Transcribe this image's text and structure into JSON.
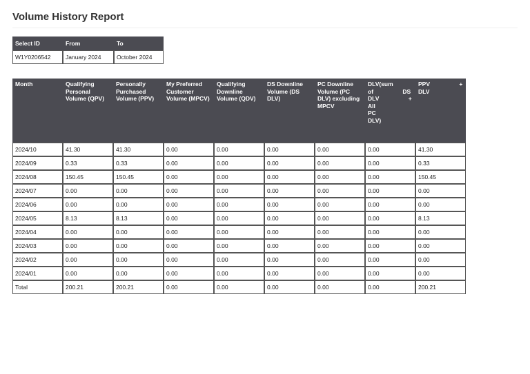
{
  "report": {
    "title": "Volume History Report"
  },
  "selection": {
    "headers": [
      "Select ID",
      "From",
      "To"
    ],
    "row": [
      "W1Y0206542",
      "January 2024",
      "October 2024"
    ]
  },
  "volume": {
    "headers": [
      "Month",
      "Qualifying Personal Volume (QPV)",
      "Personally Purchased Volume (PPV)",
      "My Preferred Customer Volume (MPCV)",
      "Qualifying Downline Volume (QDV)",
      "DS Downline Volume (DS DLV)",
      "PC Downline Volume (PC DLV) excluding MPCV",
      "DLV(sum of DS DLV + All PC DLV)",
      "PPV + DLV"
    ],
    "rows": [
      [
        "2024/10",
        "41.30",
        "41.30",
        "0.00",
        "0.00",
        "0.00",
        "0.00",
        "0.00",
        "41.30"
      ],
      [
        "2024/09",
        "0.33",
        "0.33",
        "0.00",
        "0.00",
        "0.00",
        "0.00",
        "0.00",
        "0.33"
      ],
      [
        "2024/08",
        "150.45",
        "150.45",
        "0.00",
        "0.00",
        "0.00",
        "0.00",
        "0.00",
        "150.45"
      ],
      [
        "2024/07",
        "0.00",
        "0.00",
        "0.00",
        "0.00",
        "0.00",
        "0.00",
        "0.00",
        "0.00"
      ],
      [
        "2024/06",
        "0.00",
        "0.00",
        "0.00",
        "0.00",
        "0.00",
        "0.00",
        "0.00",
        "0.00"
      ],
      [
        "2024/05",
        "8.13",
        "8.13",
        "0.00",
        "0.00",
        "0.00",
        "0.00",
        "0.00",
        "8.13"
      ],
      [
        "2024/04",
        "0.00",
        "0.00",
        "0.00",
        "0.00",
        "0.00",
        "0.00",
        "0.00",
        "0.00"
      ],
      [
        "2024/03",
        "0.00",
        "0.00",
        "0.00",
        "0.00",
        "0.00",
        "0.00",
        "0.00",
        "0.00"
      ],
      [
        "2024/02",
        "0.00",
        "0.00",
        "0.00",
        "0.00",
        "0.00",
        "0.00",
        "0.00",
        "0.00"
      ],
      [
        "2024/01",
        "0.00",
        "0.00",
        "0.00",
        "0.00",
        "0.00",
        "0.00",
        "0.00",
        "0.00"
      ],
      [
        "Total",
        "200.21",
        "200.21",
        "0.00",
        "0.00",
        "0.00",
        "0.00",
        "0.00",
        "200.21"
      ]
    ]
  }
}
